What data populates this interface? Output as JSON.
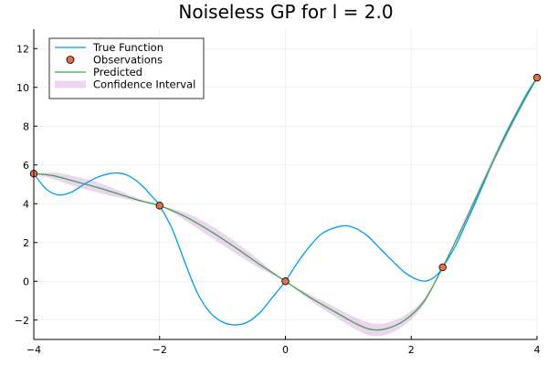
{
  "chart_data": {
    "type": "line",
    "title": "Noiseless GP for l = 2.0",
    "xlabel": "",
    "ylabel": "",
    "xlim": [
      -4,
      4
    ],
    "ylim": [
      -3,
      13
    ],
    "x_ticks": [
      -4,
      -2,
      0,
      2,
      4
    ],
    "y_ticks": [
      -2,
      0,
      2,
      4,
      6,
      8,
      10,
      12
    ],
    "x_tick_labels": [
      "−4",
      "−2",
      "0",
      "2",
      "4"
    ],
    "y_tick_labels": [
      "−2",
      "0",
      "2",
      "4",
      "6",
      "8",
      "10",
      "12"
    ],
    "grid": true,
    "legend_position": "top-left",
    "series": [
      {
        "name": "True Function",
        "kind": "line",
        "color": "#009AFA",
        "points": [
          [
            -4.0,
            5.55
          ],
          [
            -3.8,
            4.75
          ],
          [
            -3.6,
            4.45
          ],
          [
            -3.4,
            4.6
          ],
          [
            -3.2,
            5.0
          ],
          [
            -3.0,
            5.35
          ],
          [
            -2.8,
            5.55
          ],
          [
            -2.65,
            5.58
          ],
          [
            -2.5,
            5.45
          ],
          [
            -2.3,
            5.0
          ],
          [
            -2.1,
            4.3
          ],
          [
            -2.0,
            3.9
          ],
          [
            -1.8,
            2.7
          ],
          [
            -1.6,
            1.0
          ],
          [
            -1.4,
            -0.6
          ],
          [
            -1.2,
            -1.6
          ],
          [
            -1.0,
            -2.1
          ],
          [
            -0.8,
            -2.25
          ],
          [
            -0.6,
            -2.1
          ],
          [
            -0.4,
            -1.6
          ],
          [
            -0.2,
            -0.8
          ],
          [
            0.0,
            0.0
          ],
          [
            0.2,
            1.0
          ],
          [
            0.4,
            1.85
          ],
          [
            0.6,
            2.5
          ],
          [
            0.9,
            2.85
          ],
          [
            1.1,
            2.75
          ],
          [
            1.3,
            2.35
          ],
          [
            1.5,
            1.7
          ],
          [
            1.7,
            1.05
          ],
          [
            1.9,
            0.45
          ],
          [
            2.1,
            0.08
          ],
          [
            2.25,
            0.02
          ],
          [
            2.4,
            0.3
          ],
          [
            2.5,
            0.72
          ],
          [
            2.7,
            1.8
          ],
          [
            2.9,
            3.2
          ],
          [
            3.1,
            4.65
          ],
          [
            3.3,
            6.2
          ],
          [
            3.5,
            7.6
          ],
          [
            3.7,
            8.85
          ],
          [
            3.85,
            9.75
          ],
          [
            4.0,
            10.5
          ]
        ]
      },
      {
        "name": "Observations",
        "kind": "scatter",
        "color": "#E26F46",
        "points": [
          [
            -4.0,
            5.55
          ],
          [
            -2.0,
            3.9
          ],
          [
            0.0,
            0.0
          ],
          [
            2.5,
            0.72
          ],
          [
            4.0,
            10.5
          ]
        ]
      },
      {
        "name": "Predicted",
        "kind": "line",
        "color": "#3DA44D",
        "points": [
          [
            -4.0,
            5.55
          ],
          [
            -3.7,
            5.45
          ],
          [
            -3.4,
            5.2
          ],
          [
            -3.0,
            4.85
          ],
          [
            -2.6,
            4.45
          ],
          [
            -2.3,
            4.15
          ],
          [
            -2.0,
            3.9
          ],
          [
            -1.6,
            3.35
          ],
          [
            -1.2,
            2.6
          ],
          [
            -0.8,
            1.75
          ],
          [
            -0.4,
            0.85
          ],
          [
            0.0,
            0.0
          ],
          [
            0.4,
            -0.85
          ],
          [
            0.8,
            -1.6
          ],
          [
            1.1,
            -2.15
          ],
          [
            1.35,
            -2.48
          ],
          [
            1.6,
            -2.45
          ],
          [
            1.9,
            -2.0
          ],
          [
            2.2,
            -1.05
          ],
          [
            2.5,
            0.72
          ],
          [
            2.8,
            2.7
          ],
          [
            3.1,
            4.8
          ],
          [
            3.4,
            6.85
          ],
          [
            3.7,
            8.75
          ],
          [
            4.0,
            10.5
          ]
        ]
      },
      {
        "name": "Confidence Interval",
        "kind": "band",
        "color": "#C271D2",
        "upper": [
          [
            -4.0,
            5.55
          ],
          [
            -3.7,
            5.62
          ],
          [
            -3.4,
            5.45
          ],
          [
            -3.0,
            5.12
          ],
          [
            -2.6,
            4.62
          ],
          [
            -2.3,
            4.22
          ],
          [
            -2.0,
            3.9
          ],
          [
            -1.6,
            3.55
          ],
          [
            -1.2,
            2.9
          ],
          [
            -0.8,
            2.05
          ],
          [
            -0.4,
            1.05
          ],
          [
            0.0,
            0.0
          ],
          [
            0.4,
            -0.7
          ],
          [
            0.8,
            -1.35
          ],
          [
            1.1,
            -1.85
          ],
          [
            1.35,
            -2.15
          ],
          [
            1.6,
            -2.15
          ],
          [
            1.9,
            -1.75
          ],
          [
            2.2,
            -0.9
          ],
          [
            2.5,
            0.72
          ],
          [
            2.8,
            2.85
          ],
          [
            3.1,
            5.0
          ],
          [
            3.4,
            7.05
          ],
          [
            3.7,
            8.9
          ],
          [
            4.0,
            10.5
          ]
        ],
        "lower": [
          [
            -4.0,
            5.55
          ],
          [
            -3.7,
            5.28
          ],
          [
            -3.4,
            4.95
          ],
          [
            -3.0,
            4.58
          ],
          [
            -2.6,
            4.28
          ],
          [
            -2.3,
            4.08
          ],
          [
            -2.0,
            3.9
          ],
          [
            -1.6,
            3.15
          ],
          [
            -1.2,
            2.3
          ],
          [
            -0.8,
            1.45
          ],
          [
            -0.4,
            0.65
          ],
          [
            0.0,
            0.0
          ],
          [
            0.4,
            -1.0
          ],
          [
            0.8,
            -1.85
          ],
          [
            1.1,
            -2.45
          ],
          [
            1.35,
            -2.8
          ],
          [
            1.6,
            -2.75
          ],
          [
            1.9,
            -2.25
          ],
          [
            2.2,
            -1.2
          ],
          [
            2.5,
            0.72
          ],
          [
            2.8,
            2.55
          ],
          [
            3.1,
            4.6
          ],
          [
            3.4,
            6.65
          ],
          [
            3.7,
            8.6
          ],
          [
            4.0,
            10.5
          ]
        ]
      }
    ]
  }
}
